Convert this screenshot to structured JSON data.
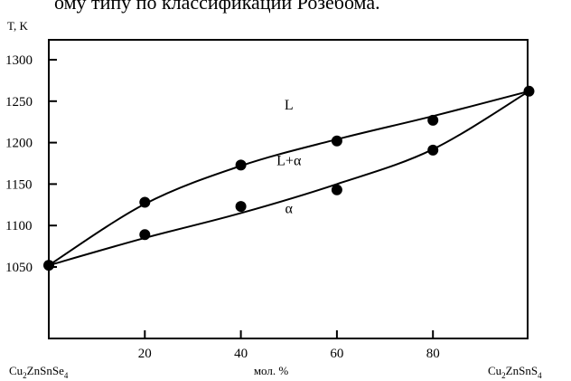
{
  "header_text": "ому типу по классификации Розебома.",
  "chart_data": {
    "type": "scatter",
    "ylabel": "T, K",
    "xlabel": "мол. %",
    "x_end_labels": {
      "left": {
        "base": "Cu",
        "s1": "2",
        "mid": "ZnSnSe",
        "s2": "4"
      },
      "right": {
        "base": "Cu",
        "s1": "2",
        "mid": "ZnSnS",
        "s2": "4"
      }
    },
    "xlim": [
      0,
      100
    ],
    "ylim": [
      1000,
      1320
    ],
    "x_ticks": [
      20,
      40,
      60,
      80
    ],
    "y_ticks": [
      1050,
      1100,
      1150,
      1200,
      1250,
      1300
    ],
    "series": [
      {
        "x": [
          0,
          20,
          40,
          60,
          80,
          100
        ],
        "y": [
          1052,
          1128,
          1173,
          1202,
          1227,
          1262
        ]
      },
      {
        "x": [
          20,
          40,
          60,
          80
        ],
        "y": [
          1089,
          1123,
          1143,
          1191
        ]
      }
    ],
    "curves": [
      {
        "x": [
          0,
          20,
          40,
          60,
          80,
          100
        ],
        "y": [
          1052,
          1126,
          1172,
          1204,
          1232,
          1262
        ]
      },
      {
        "x": [
          0,
          20,
          40,
          60,
          80,
          100
        ],
        "y": [
          1052,
          1085,
          1115,
          1150,
          1192,
          1262
        ]
      }
    ],
    "annotations": [
      {
        "text": "L",
        "x": 50,
        "y": 1240
      },
      {
        "text": "L+α",
        "x": 50,
        "y": 1173
      },
      {
        "text": "α",
        "x": 50,
        "y": 1115
      }
    ]
  }
}
